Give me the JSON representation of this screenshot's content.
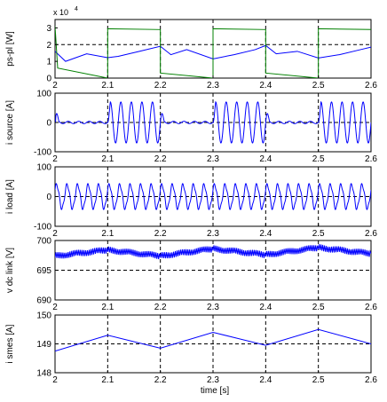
{
  "figure": {
    "xlabel": "time [s]"
  },
  "chart_data": [
    {
      "type": "line",
      "ylabel": "ps-pl [W]",
      "exponent_label": "x 10",
      "exponent_power": "4",
      "xlim": [
        2,
        2.6
      ],
      "ylim": [
        0,
        3.5
      ],
      "yticks": [
        0,
        1,
        2,
        3
      ],
      "xticks": [
        2,
        2.1,
        2.2,
        2.3,
        2.4,
        2.5,
        2.6
      ],
      "grid": "dashed vertical lines at 2.1-2.5, dashed horizontal reference",
      "ref_line": 2,
      "series": [
        {
          "color": "#0000ff",
          "points": [
            [
              2.0,
              1.6
            ],
            [
              2.02,
              1.0
            ],
            [
              2.06,
              1.45
            ],
            [
              2.1,
              1.22
            ],
            [
              2.12,
              1.3
            ],
            [
              2.16,
              1.6
            ],
            [
              2.2,
              1.9
            ],
            [
              2.22,
              1.4
            ],
            [
              2.25,
              1.7
            ],
            [
              2.3,
              1.15
            ],
            [
              2.34,
              1.4
            ],
            [
              2.38,
              1.7
            ],
            [
              2.4,
              1.95
            ],
            [
              2.42,
              1.45
            ],
            [
              2.46,
              1.6
            ],
            [
              2.5,
              1.2
            ],
            [
              2.54,
              1.4
            ],
            [
              2.58,
              1.7
            ],
            [
              2.6,
              1.85
            ]
          ]
        },
        {
          "color": "#008000",
          "points": [
            [
              2.0,
              3.1
            ],
            [
              2.005,
              0.6
            ],
            [
              2.1,
              0.0
            ],
            [
              2.1,
              2.95
            ],
            [
              2.2,
              2.9
            ],
            [
              2.2,
              0.3
            ],
            [
              2.3,
              0.0
            ],
            [
              2.3,
              2.95
            ],
            [
              2.4,
              2.9
            ],
            [
              2.4,
              0.3
            ],
            [
              2.5,
              0.0
            ],
            [
              2.5,
              2.95
            ],
            [
              2.6,
              2.9
            ]
          ]
        }
      ]
    },
    {
      "type": "line",
      "ylabel": "i source [A]",
      "xlim": [
        2,
        2.6
      ],
      "ylim": [
        -100,
        100
      ],
      "yticks": [
        -100,
        0,
        100
      ],
      "xticks": [
        2,
        2.1,
        2.2,
        2.3,
        2.4,
        2.5,
        2.6
      ],
      "ref_line": 0,
      "series": [
        {
          "color": "#0000ff",
          "waveform": "50Hz sinusoid, amplitude ~70 A during 2.1-2.2, 2.3-2.4, 2.5-2.6; near zero during 2.0-2.1, 2.2-2.3, 2.4-2.5"
        }
      ]
    },
    {
      "type": "line",
      "ylabel": "i load [A]",
      "xlim": [
        2,
        2.6
      ],
      "ylim": [
        -100,
        100
      ],
      "yticks": [
        -100,
        0,
        100
      ],
      "xticks": [
        2,
        2.1,
        2.2,
        2.3,
        2.4,
        2.5,
        2.6
      ],
      "ref_line": 0,
      "series": [
        {
          "color": "#0000ff",
          "waveform": "50Hz sinusoid, amplitude ~40 A throughout"
        }
      ]
    },
    {
      "type": "line",
      "ylabel": "v dc link [V]",
      "xlim": [
        2,
        2.6
      ],
      "ylim": [
        690,
        700
      ],
      "yticks": [
        690,
        695,
        700
      ],
      "xticks": [
        2,
        2.1,
        2.2,
        2.3,
        2.4,
        2.5,
        2.6
      ],
      "ref_line": 695,
      "series": [
        {
          "color": "#0000ff",
          "points": [
            [
              2.0,
              697.4
            ],
            [
              2.1,
              698.4
            ],
            [
              2.2,
              697.4
            ],
            [
              2.3,
              698.6
            ],
            [
              2.4,
              697.6
            ],
            [
              2.5,
              698.8
            ],
            [
              2.6,
              697.8
            ]
          ],
          "ripple": 0.6
        }
      ]
    },
    {
      "type": "line",
      "ylabel": "i smes [A]",
      "xlim": [
        2,
        2.6
      ],
      "ylim": [
        148,
        150
      ],
      "yticks": [
        148,
        149,
        150
      ],
      "xticks": [
        2,
        2.1,
        2.2,
        2.3,
        2.4,
        2.5,
        2.6
      ],
      "ref_line": 149,
      "series": [
        {
          "color": "#0000ff",
          "points": [
            [
              2.0,
              148.75
            ],
            [
              2.1,
              149.3
            ],
            [
              2.2,
              148.85
            ],
            [
              2.3,
              149.4
            ],
            [
              2.4,
              148.95
            ],
            [
              2.5,
              149.5
            ],
            [
              2.6,
              149.0
            ]
          ]
        }
      ]
    }
  ]
}
